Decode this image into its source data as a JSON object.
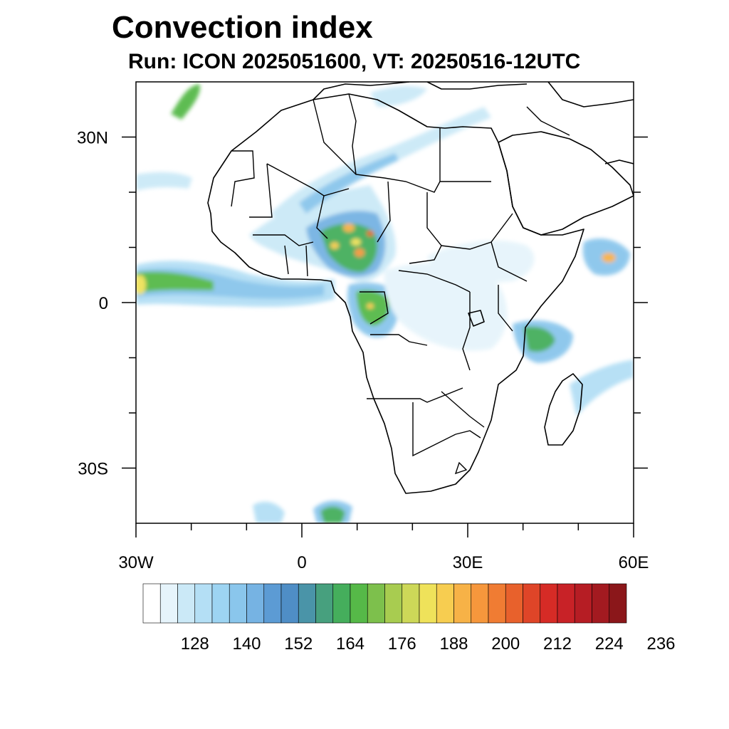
{
  "title": "Convection index",
  "subtitle": "Run: ICON 2025051600,  VT: 20250516-12UTC",
  "map": {
    "lon_range": [
      -30,
      60
    ],
    "lat_range": [
      -40,
      40
    ],
    "lat_ticks": [
      {
        "value": 30,
        "label": "30N"
      },
      {
        "value": 0,
        "label": "0"
      },
      {
        "value": -30,
        "label": "30S"
      }
    ],
    "lon_ticks": [
      {
        "value": -30,
        "label": "30W"
      },
      {
        "value": 0,
        "label": "0"
      },
      {
        "value": 30,
        "label": "30E"
      },
      {
        "value": 60,
        "label": "60E"
      }
    ]
  },
  "colorbar": {
    "labels": [
      "128",
      "140",
      "152",
      "164",
      "176",
      "188",
      "200",
      "212",
      "224",
      "236"
    ],
    "colors": [
      "#ffffff",
      "#e6f4fb",
      "#cbe9f7",
      "#b4dff5",
      "#9dd4f2",
      "#8ac6ec",
      "#76b3e3",
      "#5c9bd4",
      "#4f8ec6",
      "#4a94a8",
      "#47a07e",
      "#45ae5c",
      "#56b948",
      "#7dc04c",
      "#a8cc50",
      "#cdd858",
      "#efe25a",
      "#f7cd50",
      "#f7b247",
      "#f6973c",
      "#f07c33",
      "#e8612c",
      "#df4528",
      "#d62b26",
      "#c82227",
      "#b61d24",
      "#a31a20",
      "#8b171a"
    ]
  }
}
